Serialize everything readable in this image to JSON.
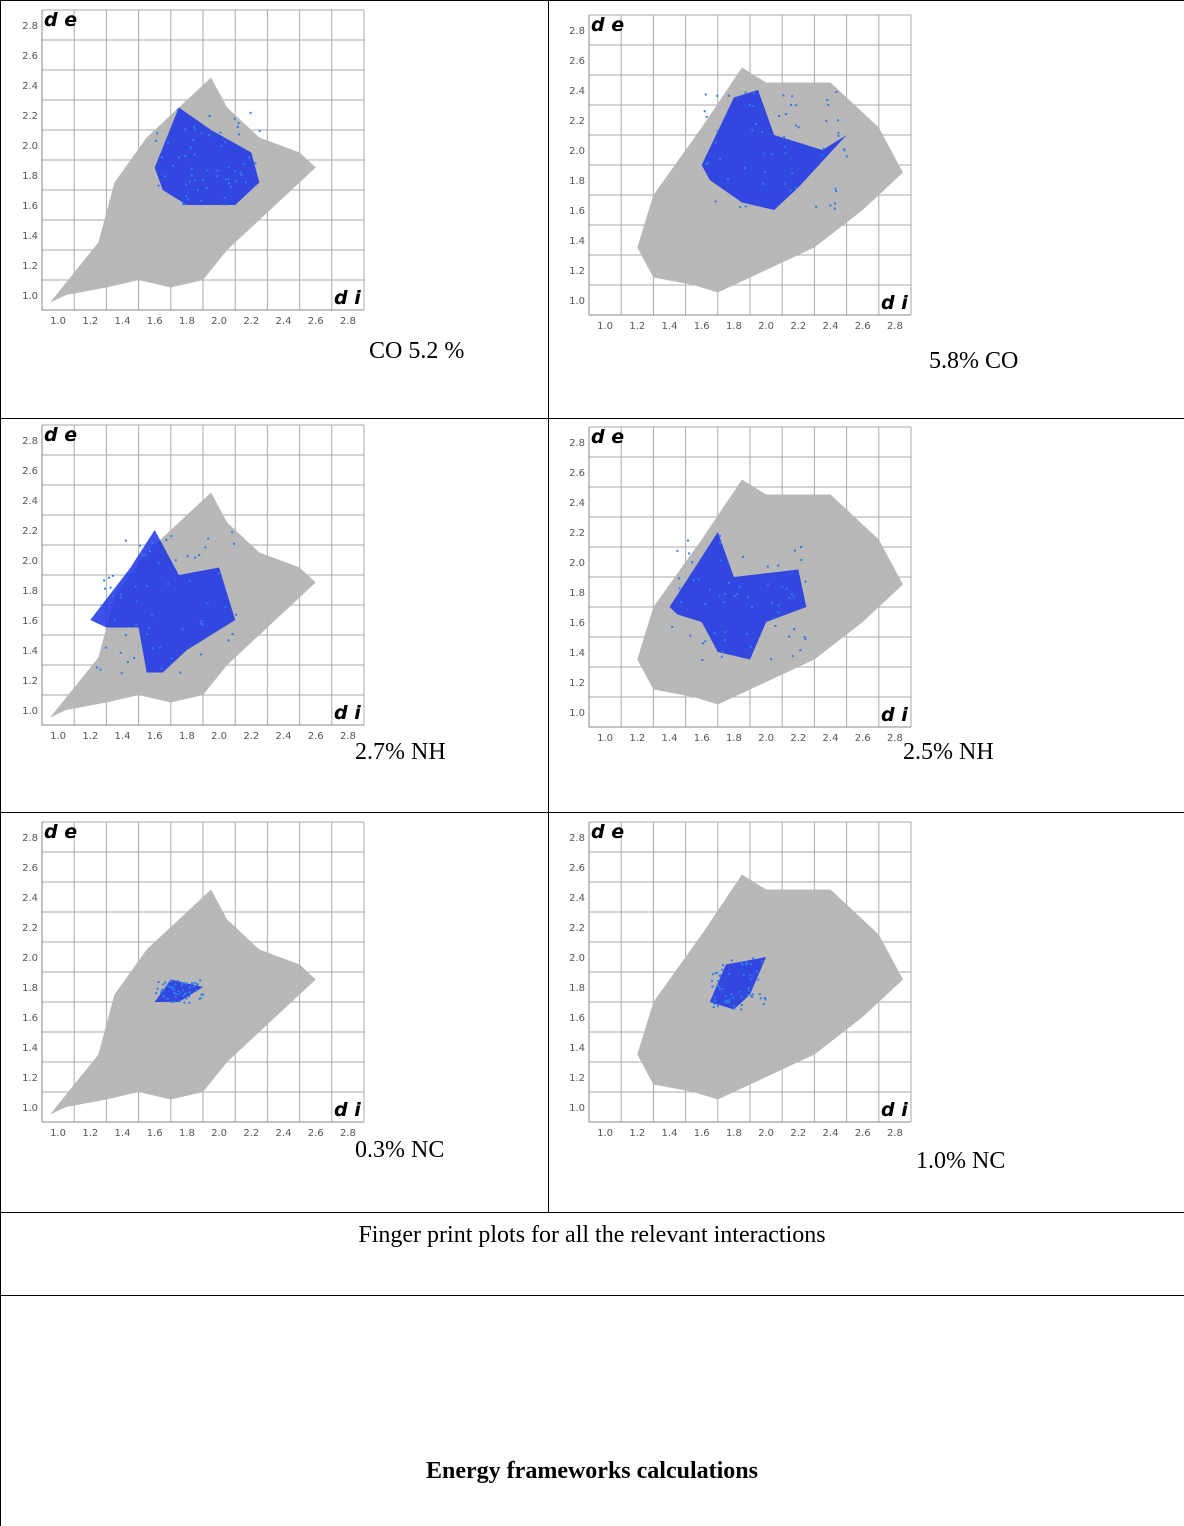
{
  "plots": [
    {
      "label": "CO 5.2 %",
      "y_axis_label": "d e",
      "x_axis_label": "d i",
      "x_ticks": [
        "1.0",
        "1.2",
        "1.4",
        "1.6",
        "1.8",
        "2.0",
        "2.2",
        "2.4",
        "2.6",
        "2.8"
      ],
      "y_ticks": [
        "1.0",
        "1.2",
        "1.4",
        "1.6",
        "1.8",
        "2.0",
        "2.2",
        "2.4",
        "2.6",
        "2.8"
      ],
      "highlight_color": "#1a33e6",
      "background_color": "#b4b4b4"
    },
    {
      "label": "5.8% CO",
      "y_axis_label": "d e",
      "x_axis_label": "d i",
      "x_ticks": [
        "1.0",
        "1.2",
        "1.4",
        "1.6",
        "1.8",
        "2.0",
        "2.2",
        "2.4",
        "2.6",
        "2.8"
      ],
      "y_ticks": [
        "1.0",
        "1.2",
        "1.4",
        "1.6",
        "1.8",
        "2.0",
        "2.2",
        "2.4",
        "2.6",
        "2.8"
      ],
      "highlight_color": "#1a33e6",
      "background_color": "#b4b4b4"
    },
    {
      "label": "2.7% NH",
      "y_axis_label": "d e",
      "x_axis_label": "d i",
      "x_ticks": [
        "1.0",
        "1.2",
        "1.4",
        "1.6",
        "1.8",
        "2.0",
        "2.2",
        "2.4",
        "2.6",
        "2.8"
      ],
      "y_ticks": [
        "1.0",
        "1.2",
        "1.4",
        "1.6",
        "1.8",
        "2.0",
        "2.2",
        "2.4",
        "2.6",
        "2.8"
      ],
      "highlight_color": "#1a33e6",
      "background_color": "#b4b4b4"
    },
    {
      "label": "2.5% NH",
      "y_axis_label": "d e",
      "x_axis_label": "d i",
      "x_ticks": [
        "1.0",
        "1.2",
        "1.4",
        "1.6",
        "1.8",
        "2.0",
        "2.2",
        "2.4",
        "2.6",
        "2.8"
      ],
      "y_ticks": [
        "1.0",
        "1.2",
        "1.4",
        "1.6",
        "1.8",
        "2.0",
        "2.2",
        "2.4",
        "2.6",
        "2.8"
      ],
      "highlight_color": "#1a33e6",
      "background_color": "#b4b4b4"
    },
    {
      "label": "0.3% NC",
      "y_axis_label": "d e",
      "x_axis_label": "d i",
      "x_ticks": [
        "1.0",
        "1.2",
        "1.4",
        "1.6",
        "1.8",
        "2.0",
        "2.2",
        "2.4",
        "2.6",
        "2.8"
      ],
      "y_ticks": [
        "1.0",
        "1.2",
        "1.4",
        "1.6",
        "1.8",
        "2.0",
        "2.2",
        "2.4",
        "2.6",
        "2.8"
      ],
      "highlight_color": "#1a33e6",
      "background_color": "#b4b4b4"
    },
    {
      "label": "1.0% NC",
      "y_axis_label": "d e",
      "x_axis_label": "d i",
      "x_ticks": [
        "1.0",
        "1.2",
        "1.4",
        "1.6",
        "1.8",
        "2.0",
        "2.2",
        "2.4",
        "2.6",
        "2.8"
      ],
      "y_ticks": [
        "1.0",
        "1.2",
        "1.4",
        "1.6",
        "1.8",
        "2.0",
        "2.2",
        "2.4",
        "2.6",
        "2.8"
      ],
      "highlight_color": "#1a33e6",
      "background_color": "#b4b4b4"
    }
  ],
  "caption": "Finger print plots for all the relevant interactions",
  "section_heading": "Energy frameworks calculations"
}
